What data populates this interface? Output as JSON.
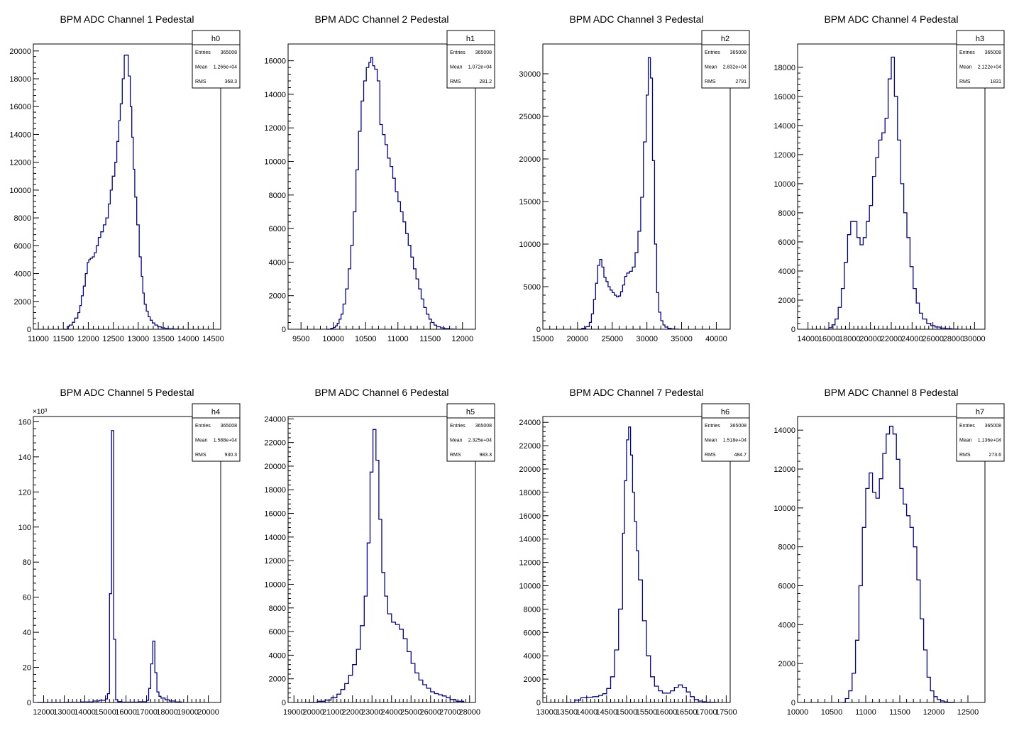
{
  "figure": {
    "background": "#ffffff",
    "line_color": "#000099",
    "frame_color": "#000000"
  },
  "chart_data": [
    {
      "type": "histogram",
      "title": "BPM ADC Channel 1 Pedestal",
      "stats": {
        "name": "h0",
        "labels": [
          "Entries",
          "Mean",
          "RMS"
        ],
        "values": [
          "365008",
          "1.266e+04",
          "368.3"
        ]
      },
      "xlim": [
        10900,
        14650
      ],
      "ylim": [
        0,
        20500
      ],
      "xticks": [
        11000,
        11500,
        12000,
        12500,
        13000,
        13500,
        14000,
        14500
      ],
      "yticks": [
        0,
        2000,
        4000,
        6000,
        8000,
        10000,
        12000,
        14000,
        16000,
        18000,
        20000
      ],
      "x": [
        11500,
        11580,
        11620,
        11680,
        11730,
        11790,
        11830,
        11860,
        11900,
        11940,
        11980,
        12010,
        12040,
        12080,
        12120,
        12160,
        12200,
        12250,
        12300,
        12350,
        12400,
        12440,
        12480,
        12530,
        12570,
        12610,
        12640,
        12680,
        12720,
        12760,
        12800,
        12840,
        12870,
        12900,
        12930,
        12970,
        13020,
        13060,
        13090,
        13120,
        13160,
        13200,
        13240,
        13280,
        13330,
        13390,
        13460,
        13530,
        13600,
        13700,
        13800,
        13870
      ],
      "y": [
        0,
        200,
        300,
        500,
        800,
        1200,
        1700,
        2400,
        3100,
        4000,
        4800,
        5000,
        5100,
        5200,
        5500,
        6000,
        6600,
        7000,
        7500,
        8000,
        9000,
        10000,
        11000,
        12000,
        13500,
        15000,
        16200,
        18000,
        19700,
        19700,
        18200,
        16000,
        13800,
        11500,
        9500,
        7500,
        5200,
        3800,
        2600,
        1800,
        1300,
        900,
        650,
        450,
        300,
        180,
        100,
        50,
        30,
        10,
        5,
        0
      ]
    },
    {
      "type": "histogram",
      "title": "BPM ADC Channel 2 Pedestal",
      "stats": {
        "name": "h1",
        "labels": [
          "Entries",
          "Mean",
          "RMS"
        ],
        "values": [
          "365008",
          "1.072e+04",
          "281.2"
        ]
      },
      "xlim": [
        9300,
        12200
      ],
      "ylim": [
        0,
        17000
      ],
      "xticks": [
        9500,
        10000,
        10500,
        11000,
        11500,
        12000
      ],
      "yticks": [
        0,
        2000,
        4000,
        6000,
        8000,
        10000,
        12000,
        14000,
        16000
      ],
      "x": [
        9900,
        9960,
        10000,
        10030,
        10060,
        10090,
        10120,
        10150,
        10190,
        10230,
        10270,
        10310,
        10350,
        10390,
        10430,
        10470,
        10510,
        10550,
        10580,
        10610,
        10640,
        10680,
        10720,
        10760,
        10800,
        10840,
        10880,
        10920,
        10960,
        11000,
        11040,
        11080,
        11120,
        11160,
        11200,
        11240,
        11280,
        11320,
        11360,
        11400,
        11440,
        11480,
        11520,
        11560,
        11600,
        11660,
        11720,
        11800,
        11870
      ],
      "y": [
        0,
        50,
        100,
        200,
        350,
        600,
        900,
        1500,
        2400,
        3600,
        5000,
        7000,
        9500,
        11800,
        13600,
        14800,
        15600,
        15900,
        16200,
        15700,
        15500,
        14800,
        12200,
        11600,
        11000,
        10200,
        9700,
        9000,
        8200,
        7600,
        7000,
        6400,
        5700,
        5000,
        4300,
        3600,
        3000,
        2400,
        1800,
        1300,
        900,
        600,
        400,
        250,
        150,
        80,
        40,
        10,
        0
      ]
    },
    {
      "type": "histogram",
      "title": "BPM ADC Channel 3 Pedestal",
      "stats": {
        "name": "h2",
        "labels": [
          "Entries",
          "Mean",
          "RMS"
        ],
        "values": [
          "365008",
          "2.832e+04",
          "2791"
        ]
      },
      "xlim": [
        15000,
        42000
      ],
      "ylim": [
        0,
        33500
      ],
      "xticks": [
        15000,
        20000,
        25000,
        30000,
        35000,
        40000
      ],
      "yticks": [
        0,
        5000,
        10000,
        15000,
        20000,
        25000,
        30000
      ],
      "x": [
        20000,
        20600,
        21200,
        21700,
        22000,
        22300,
        22600,
        22900,
        23200,
        23500,
        23800,
        24100,
        24400,
        24700,
        25000,
        25300,
        25600,
        25900,
        26200,
        26500,
        26800,
        27100,
        27500,
        27900,
        28300,
        28700,
        29100,
        29500,
        29900,
        30200,
        30500,
        30800,
        31100,
        31400,
        31700,
        32000,
        32300,
        32600,
        33000,
        33500,
        34000,
        34600
      ],
      "y": [
        0,
        100,
        300,
        800,
        1800,
        3500,
        5400,
        7500,
        8200,
        7300,
        6100,
        5600,
        5000,
        4600,
        4300,
        4000,
        3800,
        3900,
        4400,
        5200,
        6200,
        6600,
        6800,
        7300,
        9000,
        11500,
        15500,
        22000,
        27500,
        31900,
        29500,
        19800,
        10000,
        4300,
        2000,
        1000,
        500,
        250,
        100,
        40,
        10,
        0
      ]
    },
    {
      "type": "histogram",
      "title": "BPM ADC Channel 4 Pedestal",
      "stats": {
        "name": "h3",
        "labels": [
          "Entries",
          "Mean",
          "RMS"
        ],
        "values": [
          "365008",
          "2.122e+04",
          "1831"
        ]
      },
      "xlim": [
        13000,
        31000
      ],
      "ylim": [
        0,
        19600
      ],
      "xticks": [
        14000,
        16000,
        18000,
        20000,
        22000,
        24000,
        26000,
        28000,
        30000
      ],
      "yticks": [
        0,
        2000,
        4000,
        6000,
        8000,
        10000,
        12000,
        14000,
        16000,
        18000
      ],
      "x": [
        15600,
        16000,
        16300,
        16600,
        16900,
        17200,
        17500,
        17800,
        18100,
        18400,
        18700,
        19000,
        19300,
        19600,
        19900,
        20200,
        20500,
        20800,
        21100,
        21400,
        21700,
        22000,
        22300,
        22600,
        22900,
        23200,
        23500,
        23800,
        24100,
        24400,
        24700,
        25000,
        25400,
        25800,
        26200,
        26700,
        27200,
        27800,
        28400
      ],
      "y": [
        0,
        100,
        300,
        700,
        1500,
        2800,
        4600,
        6500,
        7400,
        7400,
        6300,
        5800,
        6300,
        7400,
        8500,
        10500,
        11800,
        13000,
        13500,
        14500,
        17200,
        18700,
        16000,
        13000,
        10000,
        8000,
        6300,
        4300,
        2800,
        1800,
        1100,
        700,
        400,
        250,
        150,
        80,
        40,
        10,
        0
      ]
    },
    {
      "type": "histogram",
      "title": "BPM ADC Channel 5 Pedestal",
      "stats": {
        "name": "h4",
        "labels": [
          "Entries",
          "Mean",
          "RMS"
        ],
        "values": [
          "365008",
          "1.588e+04",
          "930.3"
        ]
      },
      "multiplier_label": "×10³",
      "xlim": [
        11500,
        20600
      ],
      "ylim": [
        0,
        163000
      ],
      "xticks": [
        12000,
        13000,
        14000,
        15000,
        16000,
        17000,
        18000,
        19000,
        20000
      ],
      "yticks": [
        0,
        20000,
        40000,
        60000,
        80000,
        100000,
        120000,
        140000,
        160000
      ],
      "ytick_labels": [
        "0",
        "20",
        "40",
        "60",
        "80",
        "100",
        "120",
        "140",
        "160"
      ],
      "x": [
        11700,
        13000,
        13800,
        14400,
        14700,
        15000,
        15100,
        15200,
        15300,
        15400,
        15500,
        15600,
        15800,
        16200,
        16600,
        17000,
        17100,
        17200,
        17300,
        17400,
        17500,
        17600,
        17700,
        17900,
        18100,
        18400,
        18700
      ],
      "y": [
        0,
        100,
        300,
        800,
        1200,
        2000,
        5000,
        62000,
        155000,
        36000,
        1500,
        500,
        200,
        200,
        400,
        1200,
        8000,
        22000,
        35000,
        17000,
        6000,
        3500,
        2500,
        1500,
        800,
        300,
        0
      ]
    },
    {
      "type": "histogram",
      "title": "BPM ADC Channel 6 Pedestal",
      "stats": {
        "name": "h5",
        "labels": [
          "Entries",
          "Mean",
          "RMS"
        ],
        "values": [
          "365008",
          "2.325e+04",
          "983.3"
        ]
      },
      "xlim": [
        18700,
        28300
      ],
      "ylim": [
        0,
        24200
      ],
      "xticks": [
        19000,
        20000,
        21000,
        22000,
        23000,
        24000,
        25000,
        26000,
        27000,
        28000
      ],
      "yticks": [
        0,
        2000,
        4000,
        6000,
        8000,
        10000,
        12000,
        14000,
        16000,
        18000,
        20000,
        22000,
        24000
      ],
      "x": [
        19700,
        20200,
        20600,
        20900,
        21200,
        21400,
        21600,
        21800,
        22000,
        22200,
        22400,
        22600,
        22750,
        22900,
        23050,
        23200,
        23350,
        23500,
        23650,
        23800,
        24000,
        24200,
        24400,
        24600,
        24800,
        25000,
        25200,
        25400,
        25600,
        25800,
        26000,
        26200,
        26400,
        26600,
        26800,
        27000,
        27300,
        27700
      ],
      "y": [
        0,
        100,
        200,
        400,
        700,
        1100,
        1600,
        2300,
        3200,
        4500,
        6500,
        9000,
        13500,
        19500,
        23100,
        20500,
        15500,
        11000,
        9000,
        7500,
        6800,
        6600,
        6200,
        5400,
        4300,
        3300,
        2500,
        1900,
        1500,
        1200,
        900,
        750,
        650,
        550,
        400,
        250,
        100,
        0
      ]
    },
    {
      "type": "histogram",
      "title": "BPM ADC Channel 7 Pedestal",
      "stats": {
        "name": "h6",
        "labels": [
          "Entries",
          "Mean",
          "RMS"
        ],
        "values": [
          "365008",
          "1.518e+04",
          "484.7"
        ]
      },
      "xlim": [
        12900,
        17600
      ],
      "ylim": [
        0,
        24500
      ],
      "xticks": [
        13000,
        13500,
        14000,
        14500,
        15000,
        15500,
        16000,
        16500,
        17000,
        17500
      ],
      "yticks": [
        0,
        2000,
        4000,
        6000,
        8000,
        10000,
        12000,
        14000,
        16000,
        18000,
        20000,
        22000,
        24000
      ],
      "x": [
        13500,
        13700,
        13850,
        14000,
        14150,
        14300,
        14400,
        14500,
        14600,
        14700,
        14800,
        14900,
        14950,
        15000,
        15050,
        15100,
        15150,
        15200,
        15250,
        15300,
        15400,
        15500,
        15600,
        15700,
        15800,
        15900,
        16000,
        16100,
        16200,
        16300,
        16400,
        16500,
        16600,
        16700,
        16800,
        16900,
        17000,
        17100,
        17250
      ],
      "y": [
        0,
        200,
        400,
        450,
        500,
        600,
        750,
        1200,
        2200,
        4500,
        8000,
        14500,
        19000,
        22500,
        23600,
        21200,
        18000,
        15500,
        13000,
        10500,
        7000,
        4000,
        2200,
        1400,
        1000,
        800,
        800,
        1000,
        1300,
        1500,
        1300,
        900,
        500,
        250,
        120,
        60,
        30,
        10,
        0
      ]
    },
    {
      "type": "histogram",
      "title": "BPM ADC Channel 8 Pedestal",
      "stats": {
        "name": "h7",
        "labels": [
          "Entries",
          "Mean",
          "RMS"
        ],
        "values": [
          "365008",
          "1.136e+04",
          "273.6"
        ]
      },
      "xlim": [
        10000,
        12750
      ],
      "ylim": [
        0,
        14700
      ],
      "xticks": [
        10000,
        10500,
        11000,
        11500,
        12000,
        12500
      ],
      "yticks": [
        0,
        2000,
        4000,
        6000,
        8000,
        10000,
        12000,
        14000
      ],
      "x": [
        10650,
        10700,
        10750,
        10800,
        10850,
        10900,
        10950,
        11000,
        11050,
        11100,
        11150,
        11200,
        11250,
        11300,
        11350,
        11400,
        11450,
        11500,
        11550,
        11600,
        11650,
        11700,
        11750,
        11800,
        11850,
        11900,
        11950,
        12000,
        12050,
        12100,
        12150,
        12200,
        12300
      ],
      "y": [
        0,
        200,
        600,
        1500,
        3200,
        6000,
        9000,
        11000,
        11800,
        10800,
        10500,
        11500,
        12800,
        13800,
        14200,
        13800,
        12500,
        11000,
        10200,
        9600,
        9000,
        8000,
        6300,
        4300,
        2700,
        1300,
        600,
        300,
        150,
        80,
        30,
        10,
        0
      ]
    }
  ]
}
